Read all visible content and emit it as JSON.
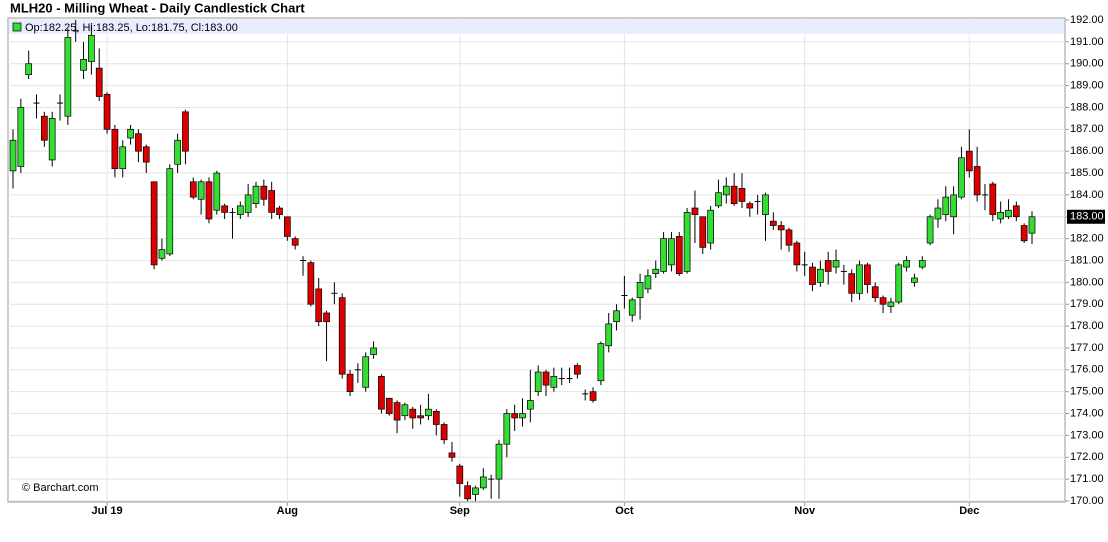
{
  "chart_data": {
    "type": "candlestick",
    "title": "MLH20 - Milling Wheat - Daily Candlestick Chart",
    "legend_label": "Op:182.25, Hi:183.25, Lo:181.75, Cl:183.00",
    "credit": "© Barchart.com",
    "up_color": "#33dd33",
    "down_color": "#dd0000",
    "last_price": {
      "value": 183,
      "label": "183.00"
    },
    "grid": true,
    "ylim": [
      170,
      192
    ],
    "yticks": [
      {
        "value": 170,
        "label": "170.00"
      },
      {
        "value": 171,
        "label": "171.00"
      },
      {
        "value": 172,
        "label": "172.00"
      },
      {
        "value": 173,
        "label": "173.00"
      },
      {
        "value": 174,
        "label": "174.00"
      },
      {
        "value": 175,
        "label": "175.00"
      },
      {
        "value": 176,
        "label": "176.00"
      },
      {
        "value": 177,
        "label": "177.00"
      },
      {
        "value": 178,
        "label": "178.00"
      },
      {
        "value": 179,
        "label": "179.00"
      },
      {
        "value": 180,
        "label": "180.00"
      },
      {
        "value": 181,
        "label": "181.00"
      },
      {
        "value": 182,
        "label": "182.00"
      },
      {
        "value": 183,
        "label": "183.00"
      },
      {
        "value": 184,
        "label": "184.00"
      },
      {
        "value": 185,
        "label": "185.00"
      },
      {
        "value": 186,
        "label": "186.00"
      },
      {
        "value": 187,
        "label": "187.00"
      },
      {
        "value": 188,
        "label": "188.00"
      },
      {
        "value": 189,
        "label": "189.00"
      },
      {
        "value": 190,
        "label": "190.00"
      },
      {
        "value": 191,
        "label": "191.00"
      },
      {
        "value": 192,
        "label": "192.00"
      }
    ],
    "categories": [
      null,
      null,
      null,
      null,
      null,
      null,
      null,
      null,
      null,
      null,
      null,
      null,
      "Jul 19",
      null,
      null,
      null,
      null,
      null,
      null,
      null,
      null,
      null,
      null,
      null,
      null,
      null,
      null,
      null,
      null,
      null,
      null,
      null,
      null,
      null,
      null,
      "Aug",
      null,
      null,
      null,
      null,
      null,
      null,
      null,
      null,
      null,
      null,
      null,
      null,
      null,
      null,
      null,
      null,
      null,
      null,
      null,
      null,
      null,
      "Sep",
      null,
      null,
      null,
      null,
      null,
      null,
      null,
      null,
      null,
      null,
      null,
      null,
      null,
      null,
      null,
      null,
      null,
      null,
      null,
      null,
      "Oct",
      null,
      null,
      null,
      null,
      null,
      null,
      null,
      null,
      null,
      null,
      null,
      null,
      null,
      null,
      null,
      null,
      null,
      null,
      null,
      null,
      null,
      null,
      "Nov",
      null,
      null,
      null,
      null,
      null,
      null,
      null,
      null,
      null,
      null,
      null,
      null,
      null,
      null,
      null,
      null,
      null,
      null,
      null,
      null,
      "Dec",
      null,
      null,
      null,
      null,
      null,
      null,
      null,
      null
    ],
    "open": [
      185.1,
      185.3,
      189.5,
      188.2,
      187.6,
      185.6,
      188.2,
      187.6,
      191.5,
      189.7,
      190.1,
      189.8,
      188.6,
      187.0,
      185.2,
      186.6,
      186.8,
      186.2,
      184.6,
      181.1,
      181.3,
      185.4,
      187.8,
      184.6,
      183.8,
      184.6,
      183.3,
      183.5,
      183.2,
      183.1,
      183.2,
      183.6,
      184.4,
      184.2,
      183.4,
      183.0,
      182.0,
      181.0,
      180.9,
      179.7,
      178.6,
      179.5,
      179.3,
      175.8,
      176.0,
      175.2,
      176.7,
      175.7,
      174.7,
      174.5,
      173.9,
      174.2,
      173.9,
      173.9,
      174.1,
      173.5,
      172.2,
      171.6,
      170.7,
      170.3,
      170.6,
      171.0,
      171.0,
      172.6,
      174.0,
      173.8,
      174.2,
      175.0,
      175.9,
      175.2,
      175.6,
      175.6,
      176.2,
      174.9,
      175.0,
      175.5,
      177.1,
      178.2,
      179.4,
      178.5,
      179.3,
      179.7,
      180.4,
      180.5,
      180.8,
      182.1,
      180.5,
      183.4,
      183.0,
      181.8,
      183.5,
      184.0,
      184.4,
      184.3,
      183.6,
      183.7,
      183.1,
      182.8,
      182.6,
      182.4,
      181.8,
      180.8,
      180.7,
      180.0,
      181.0,
      180.7,
      180.5,
      180.4,
      179.5,
      180.8,
      179.8,
      179.3,
      178.9,
      179.1,
      180.7,
      180.0,
      180.7,
      181.8,
      182.9,
      183.1,
      183.0,
      183.9,
      186.0,
      185.3,
      184.0,
      184.5,
      182.9,
      183.0,
      183.5,
      182.6,
      182.25
    ],
    "high": [
      187.0,
      188.4,
      190.6,
      188.6,
      187.8,
      187.8,
      188.6,
      191.6,
      192.0,
      191.0,
      191.8,
      190.7,
      188.7,
      187.2,
      186.5,
      187.2,
      187.0,
      186.3,
      184.6,
      182.0,
      185.4,
      186.8,
      187.9,
      184.8,
      184.7,
      184.8,
      185.1,
      183.6,
      183.4,
      183.7,
      184.5,
      184.6,
      184.7,
      184.6,
      183.5,
      183.0,
      182.1,
      181.2,
      181.0,
      180.2,
      178.7,
      180.0,
      179.5,
      176.0,
      176.3,
      176.8,
      177.3,
      175.8,
      174.7,
      174.6,
      174.5,
      174.3,
      174.4,
      174.9,
      174.2,
      173.6,
      172.7,
      171.7,
      170.9,
      170.7,
      171.5,
      171.2,
      172.8,
      174.2,
      174.4,
      174.7,
      176.0,
      176.2,
      176.0,
      176.1,
      176.1,
      176.1,
      176.3,
      175.1,
      175.2,
      177.3,
      178.6,
      179.0,
      180.3,
      179.3,
      180.4,
      180.6,
      181.0,
      182.3,
      182.3,
      182.3,
      183.4,
      184.2,
      183.0,
      183.5,
      184.7,
      184.8,
      185.0,
      185.0,
      183.7,
      184.0,
      184.1,
      183.2,
      182.8,
      182.5,
      181.9,
      181.4,
      180.9,
      181.0,
      181.4,
      181.5,
      180.8,
      180.6,
      181.0,
      180.9,
      180.0,
      179.4,
      179.3,
      180.9,
      181.2,
      180.4,
      181.2,
      183.1,
      183.8,
      184.4,
      184.4,
      186.2,
      187.0,
      186.2,
      184.5,
      184.6,
      183.7,
      183.8,
      183.7,
      182.7,
      183.25
    ],
    "low": [
      184.3,
      185.0,
      189.3,
      187.5,
      186.2,
      185.3,
      187.4,
      187.2,
      191.0,
      189.3,
      189.5,
      188.3,
      186.8,
      184.8,
      184.8,
      186.3,
      185.5,
      185.0,
      180.6,
      181.0,
      181.2,
      185.0,
      185.4,
      183.8,
      183.1,
      182.7,
      183.1,
      182.9,
      182.0,
      182.9,
      183.0,
      183.4,
      183.5,
      182.9,
      182.9,
      181.9,
      181.5,
      180.3,
      178.9,
      178.0,
      176.4,
      179.0,
      175.6,
      174.8,
      175.4,
      175.0,
      176.5,
      174.0,
      173.9,
      173.1,
      173.7,
      173.3,
      173.5,
      173.7,
      173.0,
      172.6,
      171.8,
      170.2,
      170.0,
      170.0,
      170.5,
      170.1,
      170.1,
      172.0,
      173.2,
      173.4,
      173.6,
      174.8,
      174.8,
      175.0,
      175.3,
      175.4,
      175.6,
      174.6,
      174.5,
      175.3,
      176.8,
      177.8,
      178.8,
      178.2,
      178.3,
      179.5,
      180.2,
      180.4,
      180.5,
      180.3,
      180.4,
      181.8,
      181.3,
      181.5,
      183.4,
      183.6,
      183.5,
      183.4,
      183.0,
      183.1,
      181.9,
      182.4,
      181.5,
      181.4,
      180.5,
      180.3,
      179.6,
      179.8,
      179.9,
      180.4,
      179.9,
      179.1,
      179.2,
      179.5,
      179.1,
      178.6,
      178.6,
      179.0,
      180.5,
      179.8,
      180.6,
      181.7,
      182.5,
      182.8,
      182.2,
      183.8,
      184.8,
      183.7,
      183.3,
      182.8,
      182.7,
      182.9,
      182.8,
      181.8,
      181.75
    ],
    "close": [
      186.5,
      188.0,
      190.0,
      188.2,
      186.5,
      187.5,
      188.2,
      191.2,
      191.5,
      190.2,
      191.3,
      188.5,
      187.0,
      185.2,
      186.2,
      187.0,
      186.0,
      185.5,
      180.8,
      181.5,
      185.2,
      186.5,
      186.0,
      183.9,
      184.6,
      182.9,
      185.0,
      183.2,
      183.2,
      183.5,
      184.0,
      184.4,
      183.8,
      183.2,
      183.1,
      182.1,
      181.7,
      181.0,
      179.0,
      178.2,
      178.2,
      179.5,
      175.8,
      175.0,
      176.0,
      176.6,
      177.0,
      174.2,
      174.0,
      173.7,
      174.4,
      173.8,
      173.8,
      174.2,
      173.5,
      172.8,
      172.0,
      170.8,
      170.1,
      170.6,
      171.1,
      171.0,
      172.6,
      174.0,
      173.8,
      174.0,
      174.6,
      175.9,
      175.3,
      175.7,
      175.6,
      175.6,
      175.8,
      174.9,
      174.6,
      177.2,
      178.1,
      178.7,
      179.4,
      179.2,
      180.0,
      180.3,
      180.6,
      182.0,
      182.0,
      180.4,
      183.2,
      183.1,
      181.6,
      183.3,
      184.1,
      184.4,
      183.6,
      183.7,
      183.4,
      183.7,
      184.0,
      182.6,
      182.4,
      181.7,
      180.8,
      180.8,
      179.9,
      180.6,
      180.5,
      181.0,
      180.5,
      179.5,
      180.8,
      179.9,
      179.3,
      179.0,
      179.1,
      180.8,
      181.0,
      180.2,
      181.0,
      183.0,
      183.4,
      183.9,
      184.0,
      185.7,
      185.1,
      184.0,
      184.0,
      183.1,
      183.2,
      183.3,
      183.0,
      181.9,
      183.0
    ]
  }
}
